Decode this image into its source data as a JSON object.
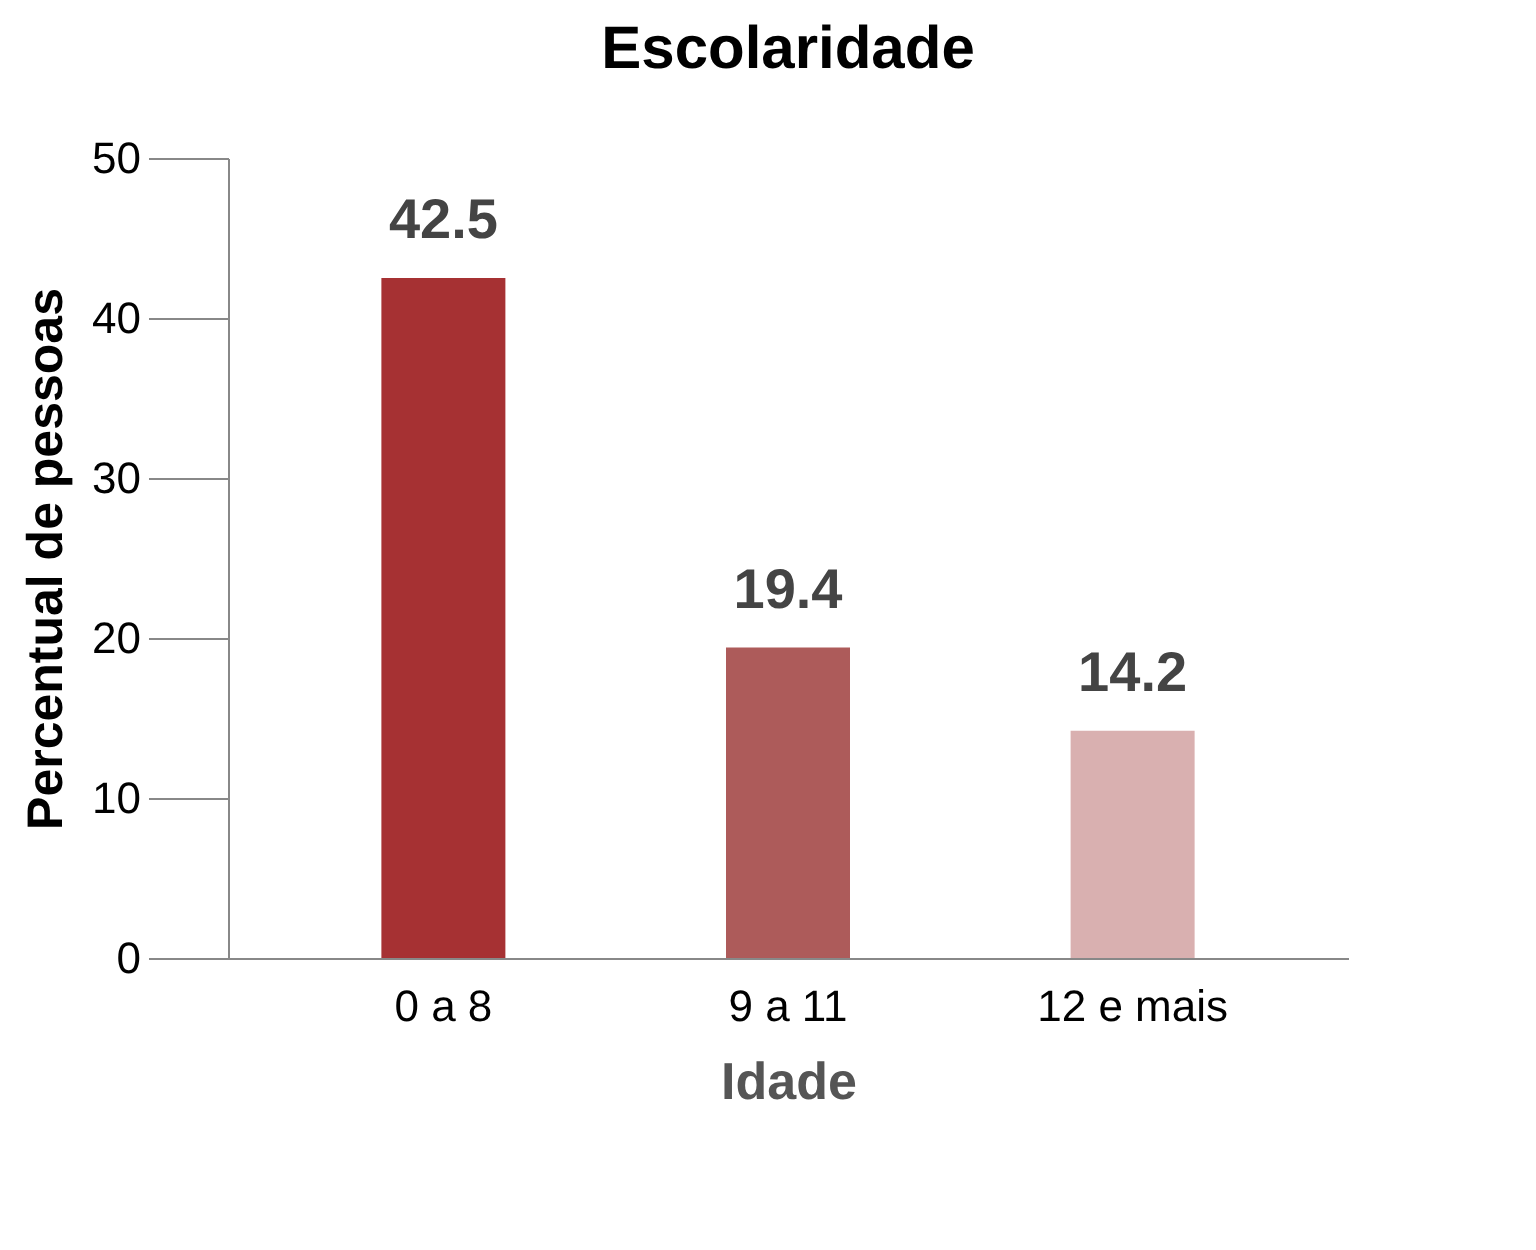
{
  "chart_data": {
    "type": "bar",
    "title": "Escolaridade",
    "xlabel": "Idade",
    "ylabel": "Percentual de pessoas",
    "categories": [
      "0 a 8",
      "9 a 11",
      "12 e mais"
    ],
    "values": [
      42.5,
      19.4,
      14.2
    ],
    "colors": [
      "#a63133",
      "#ad5b5a",
      "#d9b0b0"
    ],
    "ylim": [
      0,
      50
    ],
    "yticks": [
      0,
      10,
      20,
      30,
      40,
      50
    ],
    "grid": false,
    "data_labels": true
  }
}
